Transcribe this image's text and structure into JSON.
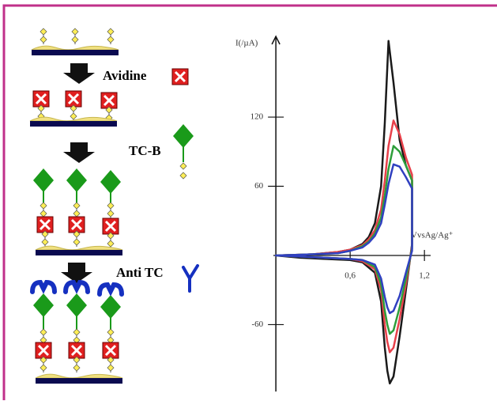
{
  "diagram": {
    "steps": [
      "Avidine",
      "TC-B",
      "Anti TC"
    ]
  },
  "chart_data": {
    "type": "line",
    "y_label": "I(/µA)",
    "x_label": "VvsAg/Ag⁺",
    "x": [
      0,
      0.3,
      0.5,
      0.6,
      0.7,
      0.75,
      0.8,
      0.85,
      0.88,
      0.91,
      0.95,
      1.0,
      1.05,
      1.1,
      1.1,
      1.05,
      1.0,
      0.95,
      0.92,
      0.9,
      0.88,
      0.85,
      0.8,
      0.7,
      0.6,
      0.4,
      0.2,
      0
    ],
    "series": [
      {
        "color": "#1a1a1a",
        "values": [
          0,
          1,
          3,
          5,
          10,
          16,
          28,
          60,
          115,
          186,
          150,
          100,
          78,
          65,
          10,
          -30,
          -70,
          -105,
          -111,
          -100,
          -80,
          -40,
          -15,
          -6,
          -4,
          -3,
          -2,
          0
        ]
      },
      {
        "color": "#e8404a",
        "values": [
          0,
          1,
          3,
          5,
          9,
          14,
          22,
          40,
          65,
          95,
          117,
          105,
          85,
          70,
          8,
          -25,
          -55,
          -80,
          -84,
          -75,
          -60,
          -30,
          -12,
          -5,
          -3,
          -2,
          -1,
          0
        ]
      },
      {
        "color": "#2e9e3a",
        "values": [
          0,
          1,
          2,
          4,
          8,
          12,
          19,
          33,
          52,
          75,
          95,
          90,
          78,
          65,
          6,
          -20,
          -45,
          -65,
          -68,
          -60,
          -48,
          -25,
          -10,
          -4,
          -3,
          -2,
          -1,
          0
        ]
      },
      {
        "color": "#3040c0",
        "values": [
          0,
          1,
          2,
          4,
          7,
          11,
          17,
          28,
          44,
          62,
          79,
          77,
          68,
          58,
          4,
          -15,
          -35,
          -48,
          -50,
          -45,
          -36,
          -20,
          -8,
          -4,
          -3,
          -2,
          -1,
          0
        ]
      }
    ],
    "xlim": [
      -0.02,
      1.25
    ],
    "ylim": [
      -118,
      190
    ],
    "xticks": [
      {
        "value": 0.6,
        "label": "0,6"
      },
      {
        "value": 1.2,
        "label": "1,2"
      }
    ],
    "yticks": [
      120,
      60,
      -60
    ]
  }
}
